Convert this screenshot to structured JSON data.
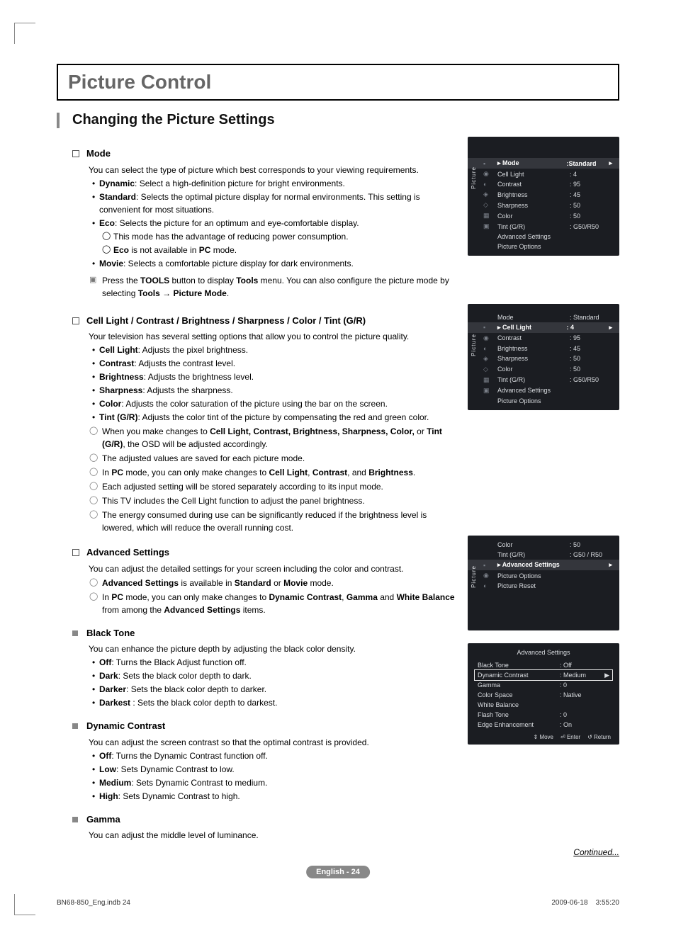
{
  "title": "Picture Control",
  "section": "Changing the Picture Settings",
  "continued": "Continued...",
  "pagebadge": "English - 24",
  "footer_left": "BN68-850_Eng.indb   24",
  "footer_right": "2009-06-18      3:55:20",
  "mode": {
    "heading": "Mode",
    "intro": "You can select the type of picture which best corresponds to your viewing requirements.",
    "dynamic_b": "Dynamic",
    "dynamic_t": ": Select a high-definition picture for bright environments.",
    "standard_b": "Standard",
    "standard_t": ": Selects the optimal picture display for normal environments. This setting is convenient for most situations.",
    "eco_b": "Eco",
    "eco_t": ": Selects the picture for an optimum and eye-comfortable display.",
    "eco_n1": "This mode has the advantage of reducing power consumption.",
    "eco_n2_pre": "Eco",
    "eco_n2_mid": " is not available in ",
    "eco_n2_pc": "PC",
    "eco_n2_post": " mode.",
    "movie_b": "Movie",
    "movie_t": ": Selects a comfortable picture display for dark environments.",
    "tools_pre": "Press the ",
    "tools_b1": "TOOLS",
    "tools_mid1": " button to display ",
    "tools_b2": "Tools",
    "tools_mid2": " menu. You can also configure the picture mode by selecting ",
    "tools_b3": "Tools → Picture Mode",
    "tools_post": "."
  },
  "cell": {
    "heading": "Cell Light / Contrast / Brightness / Sharpness / Color / Tint (G/R)",
    "intro": "Your television has several setting options that allow you to control the picture quality.",
    "items": [
      {
        "b": "Cell Light",
        "t": ": Adjusts the pixel brightness."
      },
      {
        "b": "Contrast",
        "t": ": Adjusts the contrast level."
      },
      {
        "b": "Brightness",
        "t": ": Adjusts the brightness level."
      },
      {
        "b": "Sharpness",
        "t": ": Adjusts the sharpness."
      },
      {
        "b": "Color",
        "t": ": Adjusts the color saturation of the picture using the bar on the screen."
      },
      {
        "b": "Tint (G/R)",
        "t": ": Adjusts the color tint of the picture by compensating the red and green color."
      }
    ],
    "n1_pre": "When you make changes to ",
    "n1_list": "Cell Light, Contrast, Brightness, Sharpness, Color,",
    "n1_or": " or ",
    "n1_tint": "Tint (G/R)",
    "n1_post": ", the OSD will be adjusted accordingly.",
    "n2": "The adjusted values are saved for each picture mode.",
    "n3_pre": "In ",
    "n3_pc": "PC",
    "n3_mid": " mode, you can only make changes to ",
    "n3_cl": "Cell Light",
    "n3_c": ", ",
    "n3_co": "Contrast",
    "n3_and": ", and ",
    "n3_br": "Brightness",
    "n3_post": ".",
    "n4": "Each adjusted setting will be stored separately according to its input mode.",
    "n5": "This TV includes the Cell Light function to adjust the panel brightness.",
    "n6": "The energy consumed during use can be significantly reduced if the brightness level is lowered, which will reduce the overall running cost."
  },
  "adv": {
    "heading": "Advanced Settings",
    "intro": "You can adjust the detailed settings for your screen including the color and contrast.",
    "n1_b": "Advanced Settings",
    "n1_mid": " is available in ",
    "n1_s": "Standard",
    "n1_or": " or ",
    "n1_m": "Movie",
    "n1_post": " mode.",
    "n2_pre": "In ",
    "n2_pc": "PC",
    "n2_mid": " mode, you can only make changes to ",
    "n2_dc": "Dynamic Contrast",
    "n2_c": ", ",
    "n2_g": "Gamma",
    "n2_and": " and ",
    "n2_wb": "White Balance",
    "n2_mid2": " from among the ",
    "n2_as": "Advanced Settings",
    "n2_post": " items."
  },
  "blacktone": {
    "heading": "Black Tone",
    "intro": "You can enhance the picture depth by adjusting the black color density.",
    "items": [
      {
        "b": "Off",
        "t": ": Turns the Black Adjust function off."
      },
      {
        "b": "Dark",
        "t": ": Sets the black color depth to dark."
      },
      {
        "b": "Darker",
        "t": ": Sets the black color depth to darker."
      },
      {
        "b": "Darkest",
        "t": " : Sets the black color depth to darkest."
      }
    ]
  },
  "dyncon": {
    "heading": "Dynamic Contrast",
    "intro": "You can adjust the screen contrast so that the optimal contrast is provided.",
    "items": [
      {
        "b": "Off",
        "t": ": Turns the Dynamic Contrast function off."
      },
      {
        "b": "Low",
        "t": ": Sets Dynamic Contrast to low."
      },
      {
        "b": "Medium",
        "t": ": Sets Dynamic Contrast to medium."
      },
      {
        "b": "High",
        "t": ": Sets Dynamic Contrast to high."
      }
    ]
  },
  "gamma": {
    "heading": "Gamma",
    "intro": "You can adjust the middle level of luminance."
  },
  "osd1": {
    "side": "Picture",
    "sel_label": "Mode",
    "sel_val": ":Standard",
    "rows": [
      {
        "l": "Cell Light",
        "v": ": 4"
      },
      {
        "l": "Contrast",
        "v": ": 95"
      },
      {
        "l": "Brightness",
        "v": ": 45"
      },
      {
        "l": "Sharpness",
        "v": ": 50"
      },
      {
        "l": "Color",
        "v": ": 50"
      },
      {
        "l": "Tint (G/R)",
        "v": ": G50/R50"
      },
      {
        "l": "Advanced Settings",
        "v": ""
      },
      {
        "l": "Picture Options",
        "v": ""
      }
    ]
  },
  "osd2": {
    "side": "Picture",
    "top_l": "Mode",
    "top_v": ": Standard",
    "sel_label": "Cell Light",
    "sel_val": ": 4",
    "rows": [
      {
        "l": "Contrast",
        "v": ": 95"
      },
      {
        "l": "Brightness",
        "v": ": 45"
      },
      {
        "l": "Sharpness",
        "v": ": 50"
      },
      {
        "l": "Color",
        "v": ": 50"
      },
      {
        "l": "Tint (G/R)",
        "v": ": G50/R50"
      },
      {
        "l": "Advanced Settings",
        "v": ""
      },
      {
        "l": "Picture Options",
        "v": ""
      }
    ]
  },
  "osd3": {
    "side": "Picture",
    "top_rows": [
      {
        "l": "Color",
        "v": ": 50"
      },
      {
        "l": "Tint (G/R)",
        "v": ": G50 / R50"
      }
    ],
    "sel_label": "Advanced Settings",
    "sel_val": "",
    "rows": [
      {
        "l": "Picture Options",
        "v": ""
      },
      {
        "l": "Picture Reset",
        "v": ""
      }
    ]
  },
  "osd4": {
    "title": "Advanced Settings",
    "rows": [
      {
        "l": "Black Tone",
        "v": ": Off",
        "sel": false
      },
      {
        "l": "Dynamic Contrast",
        "v": ": Medium",
        "sel": true
      },
      {
        "l": "Gamma",
        "v": ": 0",
        "sel": false
      },
      {
        "l": "Color Space",
        "v": ": Native",
        "sel": false
      },
      {
        "l": "White Balance",
        "v": "",
        "sel": false
      },
      {
        "l": "Flash Tone",
        "v": ": 0",
        "sel": false
      },
      {
        "l": "Edge Enhancement",
        "v": ": On",
        "sel": false
      }
    ],
    "footer": [
      "⇕ Move",
      "⏎ Enter",
      "↺ Return"
    ]
  }
}
